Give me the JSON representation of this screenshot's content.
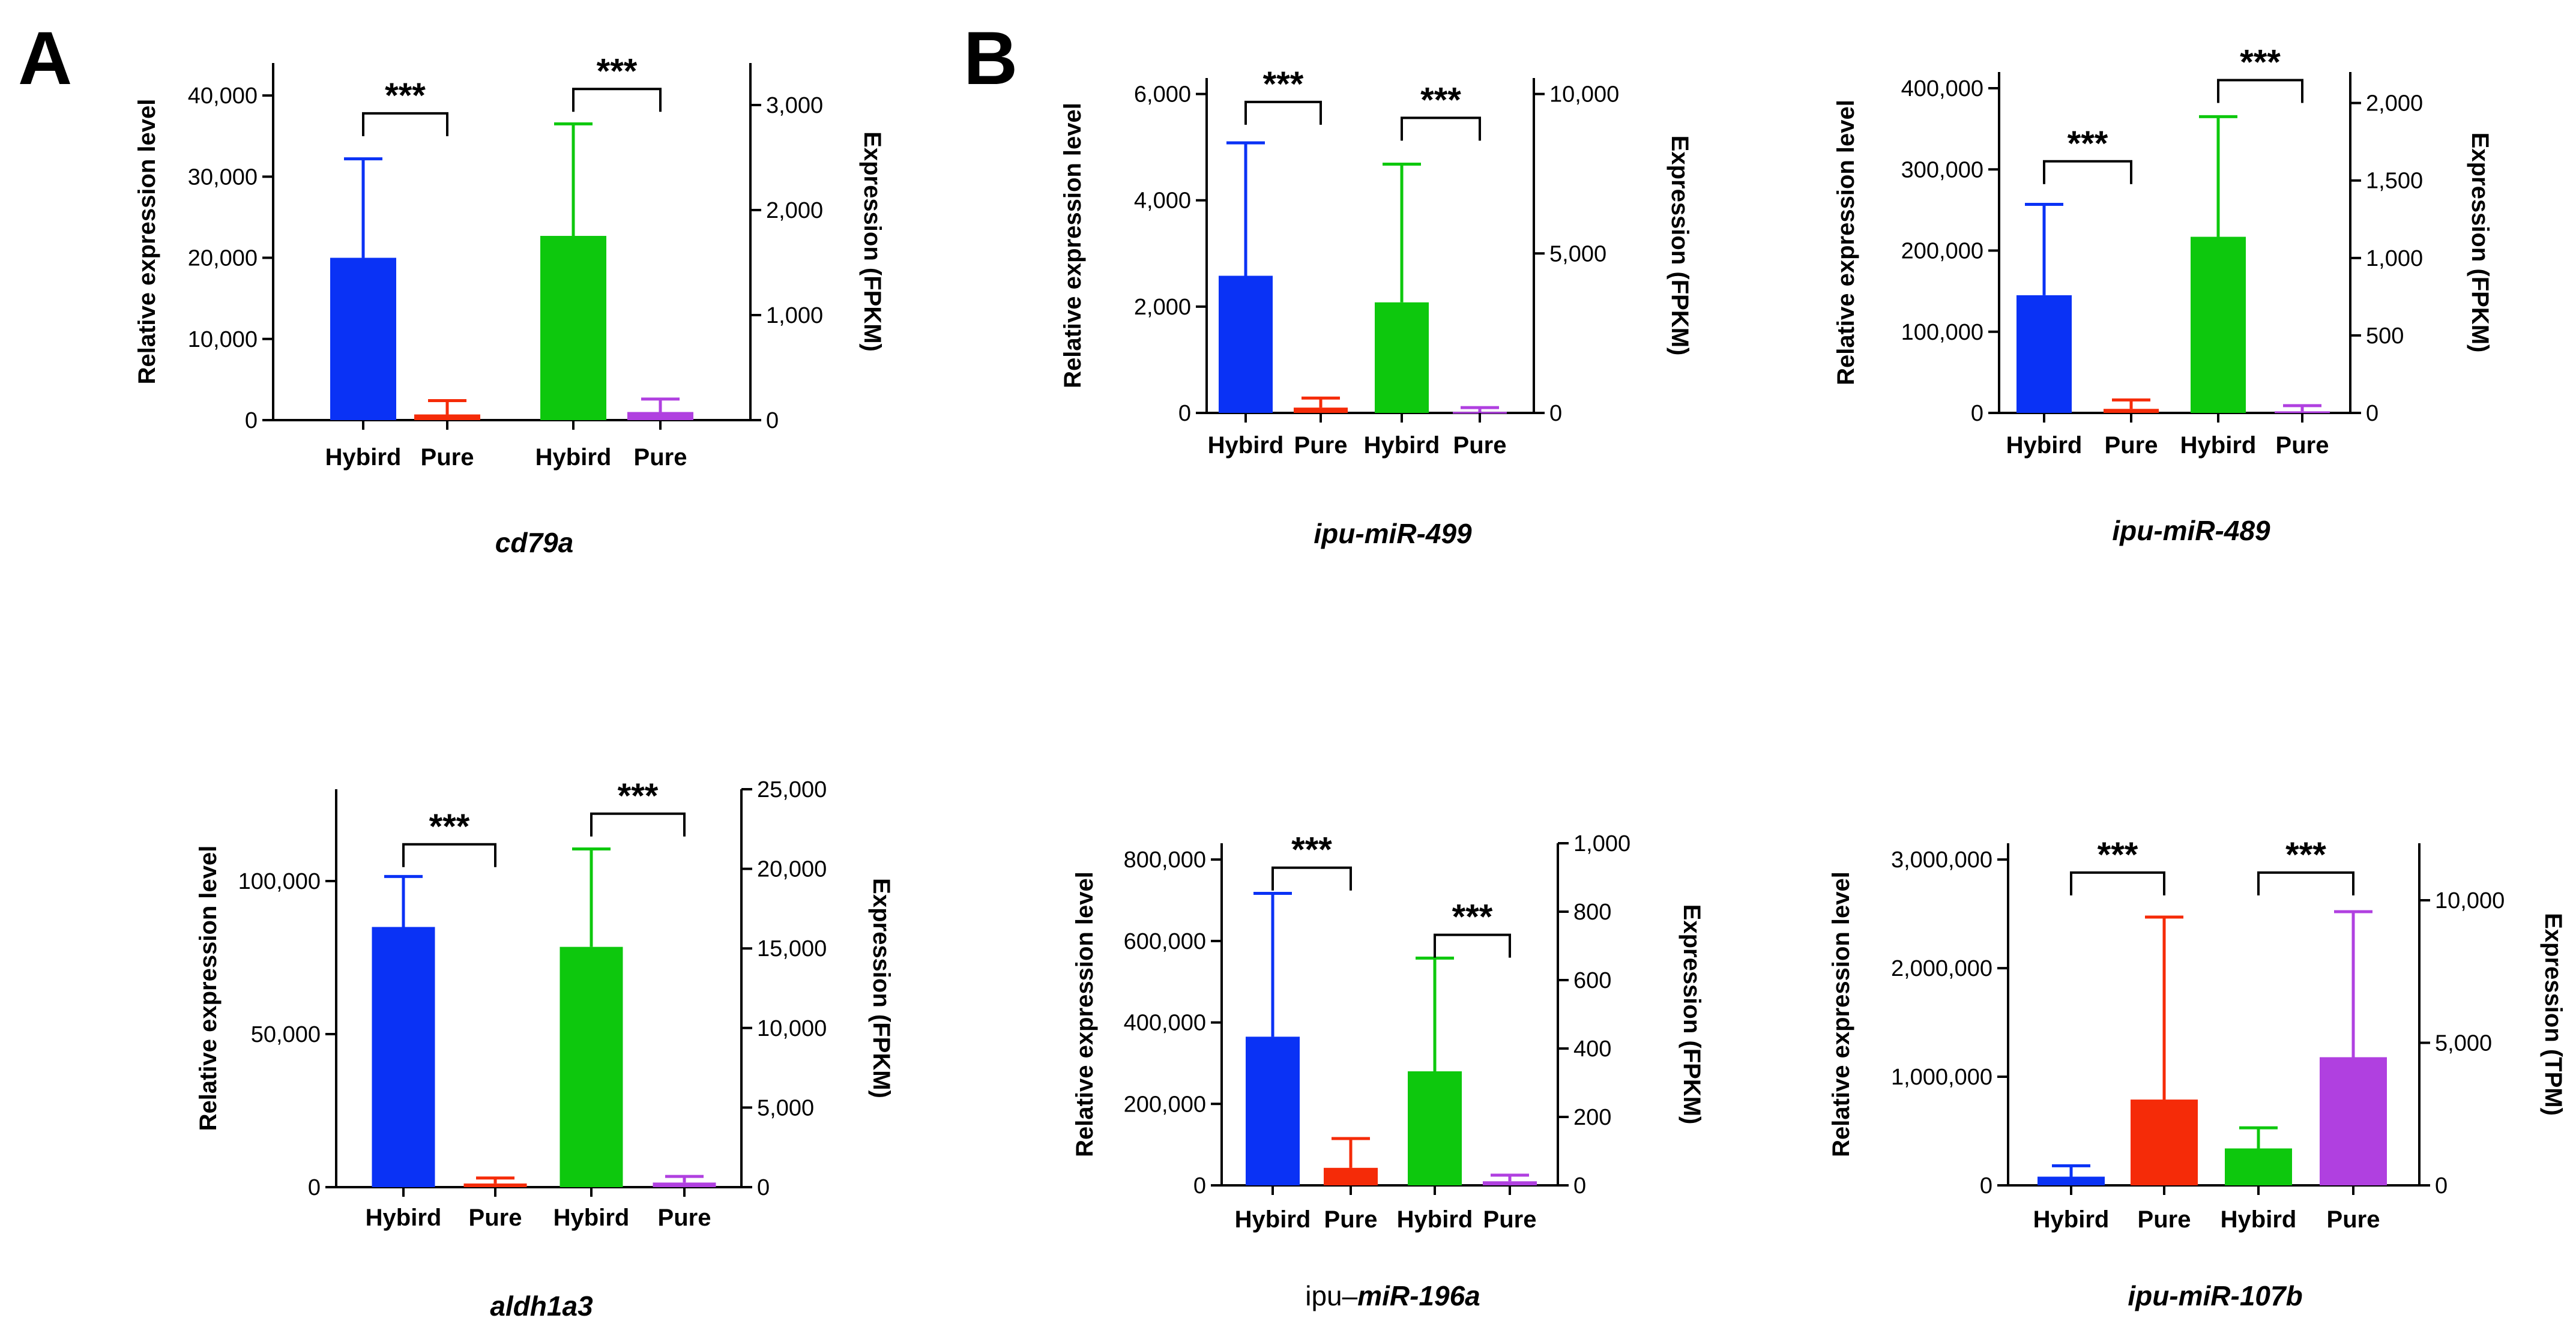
{
  "panel_labels": [
    "A",
    "B"
  ],
  "colors": {
    "hybrid1": "#0a32f5",
    "pure1": "#f52b08",
    "hybrid2": "#0dc80d",
    "pure2": "#b040e0"
  },
  "chart_data": [
    {
      "type": "bar",
      "title": "cd79a",
      "title_prefix": "",
      "title_suffix": "",
      "categories": [
        "Hybird",
        "Pure",
        "Hybird",
        "Pure"
      ],
      "ylabel": "Relative expression level",
      "ylabel_right": "Expression (FPKM)",
      "ylim": [
        0,
        44000
      ],
      "yticks": [
        0,
        10000,
        20000,
        30000,
        40000
      ],
      "yticks_labels": [
        "0",
        "10,000",
        "20,000",
        "30,000",
        "40,000"
      ],
      "ylim_right": [
        0,
        3400
      ],
      "yticks_right": [
        0,
        1000,
        2000,
        3000
      ],
      "yticks_right_labels": [
        "0",
        "1,000",
        "2,000",
        "3,000"
      ],
      "values": [
        20000,
        700,
        22700,
        1000
      ],
      "errors": [
        12200,
        1700,
        13800,
        1600
      ],
      "significance": [
        {
          "pair": [
            0,
            1
          ],
          "label": "***",
          "y": 37800
        },
        {
          "pair": [
            2,
            3
          ],
          "label": "***",
          "y": 40800
        }
      ]
    },
    {
      "type": "bar",
      "title": "ipu-miR-499",
      "title_prefix": "",
      "title_suffix": "",
      "categories": [
        "Hybird",
        "Pure",
        "Hybird",
        "Pure"
      ],
      "ylabel": "Relative expression level",
      "ylabel_right": "Expression (FPKM)",
      "ylim": [
        0,
        6300
      ],
      "yticks": [
        0,
        2000,
        4000,
        6000
      ],
      "yticks_labels": [
        "0",
        "2,000",
        "4,000",
        "6,000"
      ],
      "ylim_right": [
        0,
        10500
      ],
      "yticks_right": [
        0,
        5000,
        10000
      ],
      "yticks_right_labels": [
        "0",
        "5,000",
        "10,000"
      ],
      "values": [
        2580,
        100,
        2080,
        20
      ],
      "errors": [
        2500,
        180,
        2600,
        80
      ],
      "significance": [
        {
          "pair": [
            0,
            1
          ],
          "label": "***",
          "y": 5850
        },
        {
          "pair": [
            2,
            3
          ],
          "label": "***",
          "y": 5550
        }
      ]
    },
    {
      "type": "bar",
      "title": "ipu-miR-489",
      "title_prefix": "",
      "title_suffix": "",
      "categories": [
        "Hybird",
        "Pure",
        "Hybird",
        "Pure"
      ],
      "ylabel": "Relative expression level",
      "ylabel_right": "Expression (FPKM)",
      "ylim": [
        0,
        420000
      ],
      "yticks": [
        0,
        100000,
        200000,
        300000,
        400000
      ],
      "yticks_labels": [
        "0",
        "100,000",
        "200,000",
        "300,000",
        "400,000"
      ],
      "ylim_right": [
        0,
        2200
      ],
      "yticks_right": [
        0,
        500,
        1000,
        1500,
        2000
      ],
      "yticks_right_labels": [
        "0",
        "500",
        "1,000",
        "1,500",
        "2,000"
      ],
      "values": [
        145000,
        5000,
        217000,
        2000
      ],
      "errors": [
        112000,
        11000,
        148000,
        7000
      ],
      "significance": [
        {
          "pair": [
            0,
            1
          ],
          "label": "***",
          "y": 310000
        },
        {
          "pair": [
            2,
            3
          ],
          "label": "***",
          "y": 410000
        }
      ]
    },
    {
      "type": "bar",
      "title": "aldh1a3",
      "title_prefix": "",
      "title_suffix": "",
      "categories": [
        "Hybird",
        "Pure",
        "Hybird",
        "Pure"
      ],
      "ylabel": "Relative expression level",
      "ylabel_right": "Expression (FPKM)",
      "ylim": [
        0,
        130000
      ],
      "yticks": [
        0,
        50000,
        100000
      ],
      "yticks_labels": [
        "0",
        "50,000",
        "100,000"
      ],
      "ylim_right": [
        0,
        25000
      ],
      "yticks_right": [
        0,
        5000,
        10000,
        15000,
        20000,
        25000
      ],
      "yticks_right_labels": [
        "0",
        "5,000",
        "10,000",
        "15,000",
        "20,000",
        "25,000"
      ],
      "values": [
        85000,
        1200,
        78500,
        1500
      ],
      "errors": [
        16500,
        1800,
        32000,
        2000
      ],
      "significance": [
        {
          "pair": [
            0,
            1
          ],
          "label": "***",
          "y": 112000
        },
        {
          "pair": [
            2,
            3
          ],
          "label": "***",
          "y": 122000
        }
      ]
    },
    {
      "type": "bar",
      "title": "miR-196a",
      "title_prefix": "ipu–",
      "title_suffix": "",
      "categories": [
        "Hybird",
        "Pure",
        "Hybird",
        "Pure"
      ],
      "ylabel": "Relative expression level",
      "ylabel_right": "Expression (FPKM)",
      "ylim": [
        0,
        840000
      ],
      "yticks": [
        0,
        200000,
        400000,
        600000,
        800000
      ],
      "yticks_labels": [
        "0",
        "200,000",
        "400,000",
        "600,000",
        "800,000"
      ],
      "ylim_right": [
        0,
        1000
      ],
      "yticks_right": [
        0,
        200,
        400,
        600,
        800,
        1000
      ],
      "yticks_right_labels": [
        "0",
        "200",
        "400",
        "600",
        "800",
        "1,000"
      ],
      "values": [
        365000,
        43000,
        280000,
        10000
      ],
      "errors": [
        352000,
        72000,
        278000,
        15000
      ],
      "significance": [
        {
          "pair": [
            0,
            1
          ],
          "label": "***",
          "y": 780000
        },
        {
          "pair": [
            2,
            3
          ],
          "label": "***",
          "y": 615000
        }
      ]
    },
    {
      "type": "bar",
      "title": "ipu-miR-107b",
      "title_prefix": "",
      "title_suffix": "",
      "categories": [
        "Hybird",
        "Pure",
        "Hybird",
        "Pure"
      ],
      "ylabel": "Relative expression level",
      "ylabel_right": "Expression (TPM)",
      "ylim": [
        0,
        3150000
      ],
      "yticks": [
        0,
        1000000,
        2000000,
        3000000
      ],
      "yticks_labels": [
        "0",
        "1,000,000",
        "2,000,000",
        "3,000,000"
      ],
      "ylim_right": [
        0,
        12000
      ],
      "yticks_right": [
        0,
        5000,
        10000
      ],
      "yticks_right_labels": [
        "0",
        "5,000",
        "10,000"
      ],
      "values": [
        80000,
        790000,
        340000,
        1180000
      ],
      "errors": [
        100000,
        1680000,
        190000,
        1340000
      ],
      "significance": [
        {
          "pair": [
            0,
            1
          ],
          "label": "***",
          "y": 2880000
        },
        {
          "pair": [
            2,
            3
          ],
          "label": "***",
          "y": 2880000
        }
      ]
    }
  ]
}
